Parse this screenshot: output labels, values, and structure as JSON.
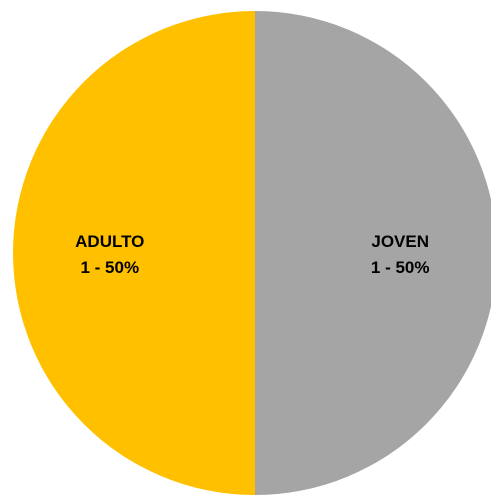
{
  "chart_data": {
    "type": "pie",
    "title": "",
    "slices": [
      {
        "label": "JOVEN",
        "value": 1,
        "percent_label": "1 - 50%",
        "color": "#A5A5A5"
      },
      {
        "label": "ADULTO",
        "value": 1,
        "percent_label": "1 - 50%",
        "color": "#FFC000"
      }
    ],
    "start_angle_deg": 0,
    "direction": "clockwise",
    "legend": "none"
  }
}
